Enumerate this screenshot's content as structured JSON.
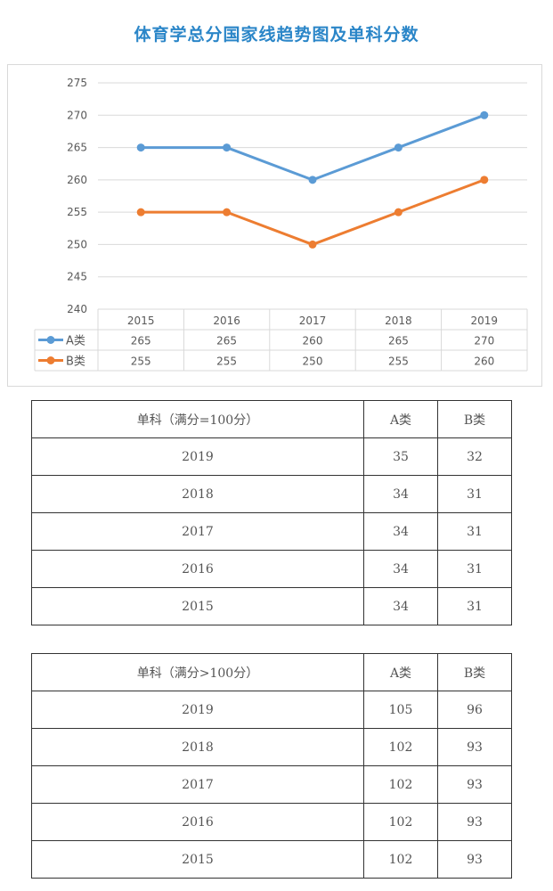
{
  "title": "体育学总分国家线趋势图及单科分数",
  "chart_data": {
    "type": "line",
    "categories": [
      "2015",
      "2016",
      "2017",
      "2018",
      "2019"
    ],
    "series": [
      {
        "name": "A类",
        "values": [
          265,
          265,
          260,
          265,
          270
        ],
        "color": "#5b9bd5"
      },
      {
        "name": "B类",
        "values": [
          255,
          255,
          250,
          255,
          260
        ],
        "color": "#ed7d31"
      }
    ],
    "ylim": [
      240,
      275
    ],
    "yticks": [
      240,
      245,
      250,
      255,
      260,
      265,
      270,
      275
    ],
    "grid": true,
    "legend": "data-table"
  },
  "table_single_100": {
    "headers": [
      "单科（满分=100分）",
      "A类",
      "B类"
    ],
    "rows": [
      [
        "2019",
        "35",
        "32"
      ],
      [
        "2018",
        "34",
        "31"
      ],
      [
        "2017",
        "34",
        "31"
      ],
      [
        "2016",
        "34",
        "31"
      ],
      [
        "2015",
        "34",
        "31"
      ]
    ]
  },
  "table_single_over100": {
    "headers": [
      "单科（满分>100分）",
      "A类",
      "B类"
    ],
    "rows": [
      [
        "2019",
        "105",
        "96"
      ],
      [
        "2018",
        "102",
        "93"
      ],
      [
        "2017",
        "102",
        "93"
      ],
      [
        "2016",
        "102",
        "93"
      ],
      [
        "2015",
        "102",
        "93"
      ]
    ]
  }
}
